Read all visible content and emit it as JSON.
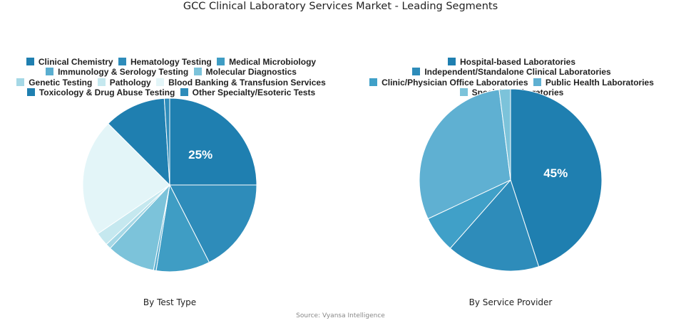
{
  "title": "GCC Clinical Laboratory Services Market - Leading Segments",
  "source": "Source: Vyansa Intelligence",
  "chart_data": [
    {
      "type": "pie",
      "subtitle": "By Test Type",
      "legend_position": "top",
      "categories": [
        "Clinical Chemistry",
        "Hematology Testing",
        "Medical Microbiology",
        "Immunology & Serology Testing",
        "Molecular Diagnostics",
        "Genetic Testing",
        "Pathology",
        "Blood Banking & Transfusion Services",
        "Toxicology & Drug Abuse Testing",
        "Other Specialty/Esoteric Tests"
      ],
      "values": [
        25,
        17.5,
        10,
        0.5,
        9,
        1,
        2.5,
        22,
        11.5,
        1
      ],
      "colors": [
        "#1f7fb0",
        "#2e8cba",
        "#3f9dc4",
        "#5aaed0",
        "#7cc3da",
        "#a5d8e6",
        "#c5e8ef",
        "#e3f5f8",
        "#1f7fb0",
        "#2e8cba"
      ],
      "data_labels": [
        "25%",
        "",
        "",
        "",
        "",
        "",
        "",
        "",
        "",
        ""
      ]
    },
    {
      "type": "pie",
      "subtitle": "By Service Provider",
      "legend_position": "top",
      "categories": [
        "Hospital-based Laboratories",
        "Independent/Standalone Clinical Laboratories",
        "Clinic/Physician Office Laboratories",
        "Public Health Laboratories",
        "Specialty Laboratories"
      ],
      "values": [
        45,
        16.5,
        6.5,
        30,
        2
      ],
      "colors": [
        "#1f7fb0",
        "#2e8cba",
        "#40a0c8",
        "#5fb0d2",
        "#7cc3da"
      ],
      "data_labels": [
        "45%",
        "",
        "",
        "",
        ""
      ]
    }
  ]
}
